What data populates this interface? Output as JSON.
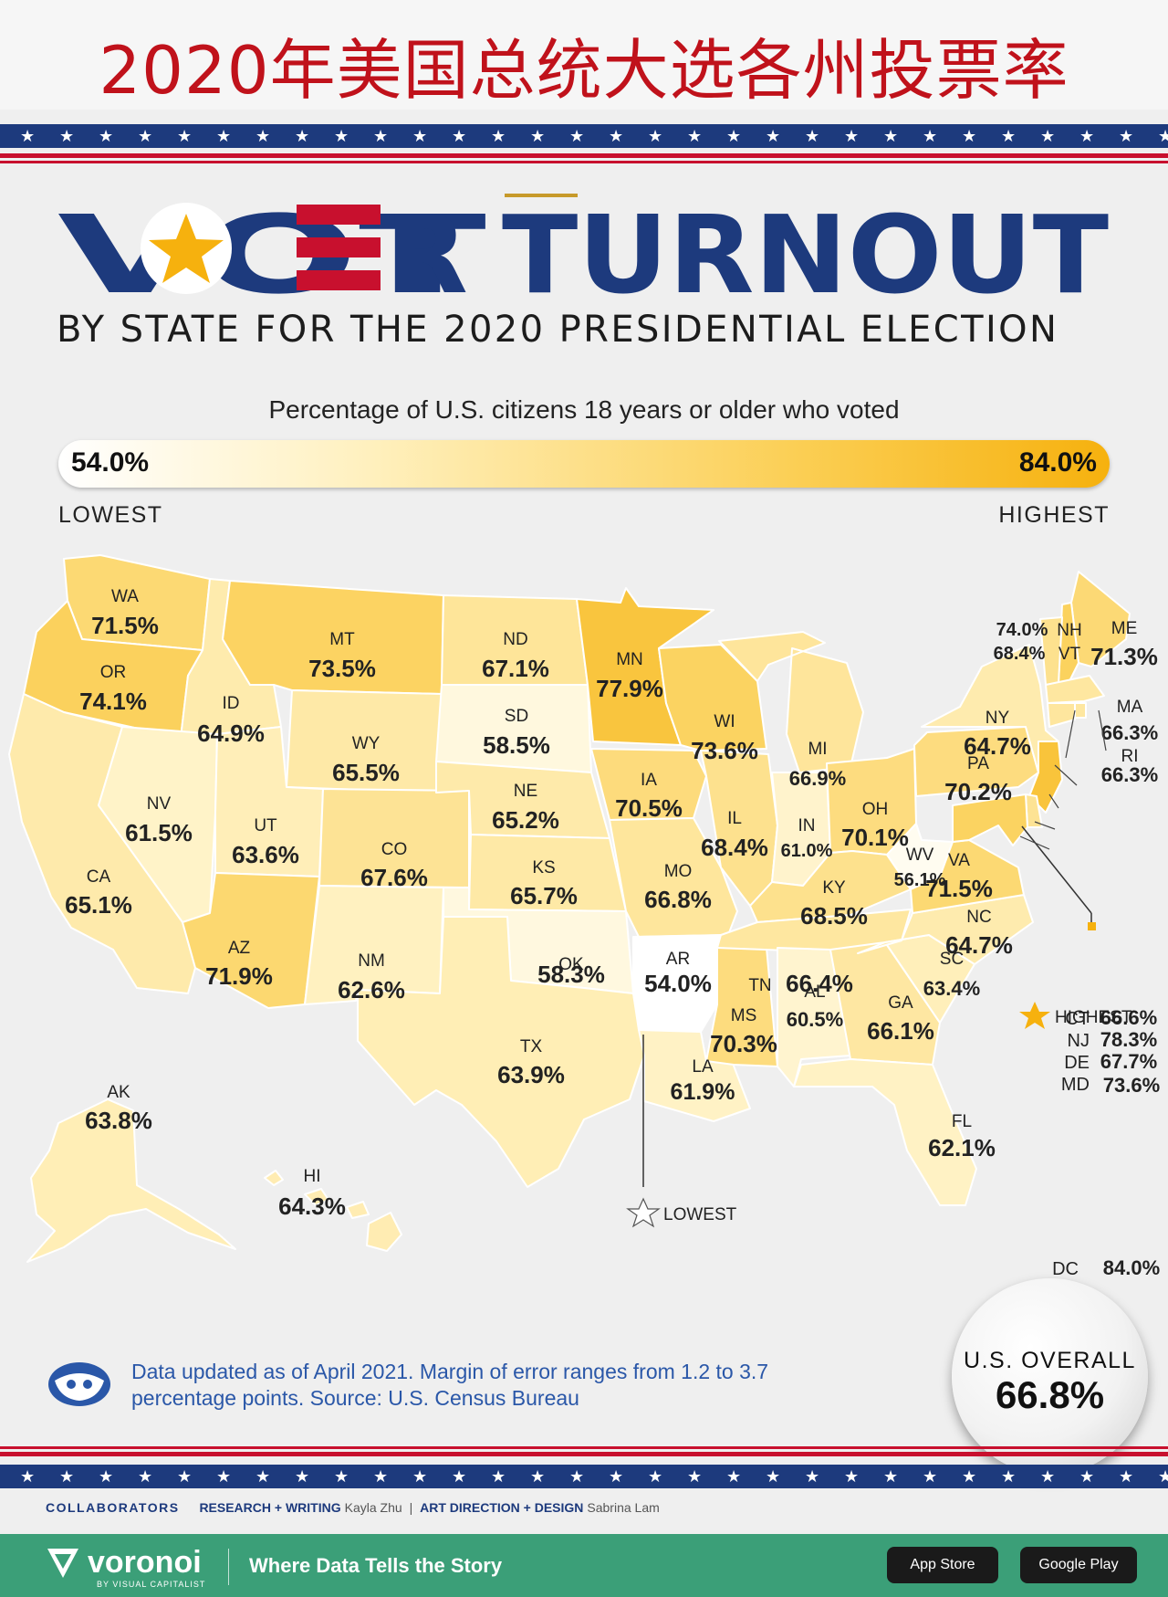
{
  "page_title_cn": "2020年美国总统大选各州投票率",
  "headline": {
    "word1": "VOT",
    "word1_end": "R",
    "word2": "TURNOUT"
  },
  "subtitle": "BY STATE FOR THE 2020 PRESIDENTIAL ELECTION",
  "legend": {
    "title": "Percentage of U.S. citizens 18 years or older who voted",
    "min": "54.0%",
    "max": "84.0%",
    "low_label": "LOWEST",
    "high_label": "HIGHEST",
    "color_low": "#ffffff",
    "color_high": "#f6b10e"
  },
  "states": [
    {
      "abbr": "WA",
      "value": "71.5%"
    },
    {
      "abbr": "OR",
      "value": "74.1%"
    },
    {
      "abbr": "CA",
      "value": "65.1%"
    },
    {
      "abbr": "ID",
      "value": "64.9%"
    },
    {
      "abbr": "NV",
      "value": "61.5%"
    },
    {
      "abbr": "MT",
      "value": "73.5%"
    },
    {
      "abbr": "WY",
      "value": "65.5%"
    },
    {
      "abbr": "UT",
      "value": "63.6%"
    },
    {
      "abbr": "AZ",
      "value": "71.9%"
    },
    {
      "abbr": "CO",
      "value": "67.6%"
    },
    {
      "abbr": "NM",
      "value": "62.6%"
    },
    {
      "abbr": "ND",
      "value": "67.1%"
    },
    {
      "abbr": "SD",
      "value": "58.5%"
    },
    {
      "abbr": "NE",
      "value": "65.2%"
    },
    {
      "abbr": "KS",
      "value": "65.7%"
    },
    {
      "abbr": "OK",
      "value": "58.3%"
    },
    {
      "abbr": "TX",
      "value": "63.9%"
    },
    {
      "abbr": "MN",
      "value": "77.9%"
    },
    {
      "abbr": "IA",
      "value": "70.5%"
    },
    {
      "abbr": "MO",
      "value": "66.8%"
    },
    {
      "abbr": "AR",
      "value": "54.0%"
    },
    {
      "abbr": "LA",
      "value": "61.9%"
    },
    {
      "abbr": "WI",
      "value": "73.6%"
    },
    {
      "abbr": "IL",
      "value": "68.4%"
    },
    {
      "abbr": "MS",
      "value": "70.3%"
    },
    {
      "abbr": "MI",
      "value": "66.9%"
    },
    {
      "abbr": "IN",
      "value": "61.0%"
    },
    {
      "abbr": "OH",
      "value": "70.1%"
    },
    {
      "abbr": "KY",
      "value": "68.5%"
    },
    {
      "abbr": "TN",
      "value": "66.4%"
    },
    {
      "abbr": "AL",
      "value": "60.5%"
    },
    {
      "abbr": "GA",
      "value": "66.1%"
    },
    {
      "abbr": "FL",
      "value": "62.1%"
    },
    {
      "abbr": "SC",
      "value": "63.4%"
    },
    {
      "abbr": "NC",
      "value": "64.7%"
    },
    {
      "abbr": "WV",
      "value": "56.1%"
    },
    {
      "abbr": "VA",
      "value": "71.5%"
    },
    {
      "abbr": "PA",
      "value": "70.2%"
    },
    {
      "abbr": "NY",
      "value": "64.7%"
    },
    {
      "abbr": "ME",
      "value": "71.3%"
    },
    {
      "abbr": "NH",
      "value": "74.0%"
    },
    {
      "abbr": "VT",
      "value": "68.4%"
    },
    {
      "abbr": "MA",
      "value": "66.3%"
    },
    {
      "abbr": "RI",
      "value": "66.3%"
    },
    {
      "abbr": "CT",
      "value": "66.6%"
    },
    {
      "abbr": "NJ",
      "value": "78.3%"
    },
    {
      "abbr": "DE",
      "value": "67.7%"
    },
    {
      "abbr": "MD",
      "value": "73.6%"
    },
    {
      "abbr": "DC",
      "value": "84.0%"
    },
    {
      "abbr": "AK",
      "value": "63.8%"
    },
    {
      "abbr": "HI",
      "value": "64.3%"
    }
  ],
  "callouts": {
    "highest": "HIGHEST",
    "lowest": "LOWEST"
  },
  "footnote": "Data updated as of April 2021. Margin of error ranges from 1.2 to 3.7 percentage points. Source: U.S. Census Bureau",
  "overall": {
    "label": "U.S. OVERALL",
    "value": "66.8%"
  },
  "credits": {
    "collaborators": "COLLABORATORS",
    "research_label": "RESEARCH + WRITING",
    "research_name": "Kayla Zhu",
    "sep": "|",
    "design_label": "ART DIRECTION + DESIGN",
    "design_name": "Sabrina Lam"
  },
  "brand": {
    "name": "voronoi",
    "by": "BY VISUAL CAPITALIST",
    "tagline": "Where Data Tells the Story",
    "store1": "App Store",
    "store2": "Google Play"
  },
  "colors": {
    "navy": "#1d3a7d",
    "red": "#c8102e",
    "gold": "#f6b10e",
    "title_red": "#c0121b",
    "green": "#3b9f78"
  }
}
